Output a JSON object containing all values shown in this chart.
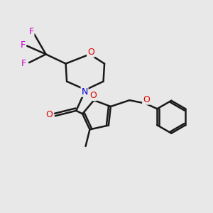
{
  "background_color": "#e8e8e8",
  "bond_color": "#1a1a1a",
  "bond_width": 1.8,
  "atom_colors": {
    "O": "#dd0000",
    "N": "#0000cc",
    "F": "#cc00cc",
    "C": "#1a1a1a"
  },
  "font_size": 8.5
}
